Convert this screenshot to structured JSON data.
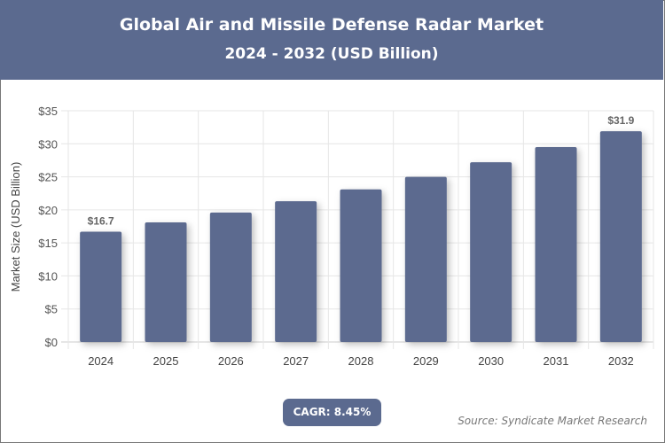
{
  "header": {
    "title": "Global Air and Missile Defense Radar Market",
    "subtitle": "2024 - 2032 (USD Billion)"
  },
  "cagr_label": "CAGR: 8.45%",
  "source": "Source: Syndicate Market Research",
  "colors": {
    "bar": "#5b6a8f",
    "header": "#5b6a8f"
  },
  "chart_data": {
    "type": "bar",
    "title": "Global Air and Missile Defense Radar Market",
    "subtitle": "2024 - 2032 (USD Billion)",
    "xlabel": "",
    "ylabel": "Market Size (USD Billion)",
    "categories": [
      "2024",
      "2025",
      "2026",
      "2027",
      "2028",
      "2029",
      "2030",
      "2031",
      "2032"
    ],
    "values": [
      16.7,
      18.1,
      19.6,
      21.3,
      23.1,
      25.0,
      27.2,
      29.5,
      31.9
    ],
    "data_labels": {
      "0": "$16.7",
      "8": "$31.9"
    },
    "ylim": [
      0,
      35
    ],
    "yticks": [
      "$0",
      "$5",
      "$10",
      "$15",
      "$20",
      "$25",
      "$30",
      "$35"
    ],
    "grid": true,
    "legend": "none"
  }
}
